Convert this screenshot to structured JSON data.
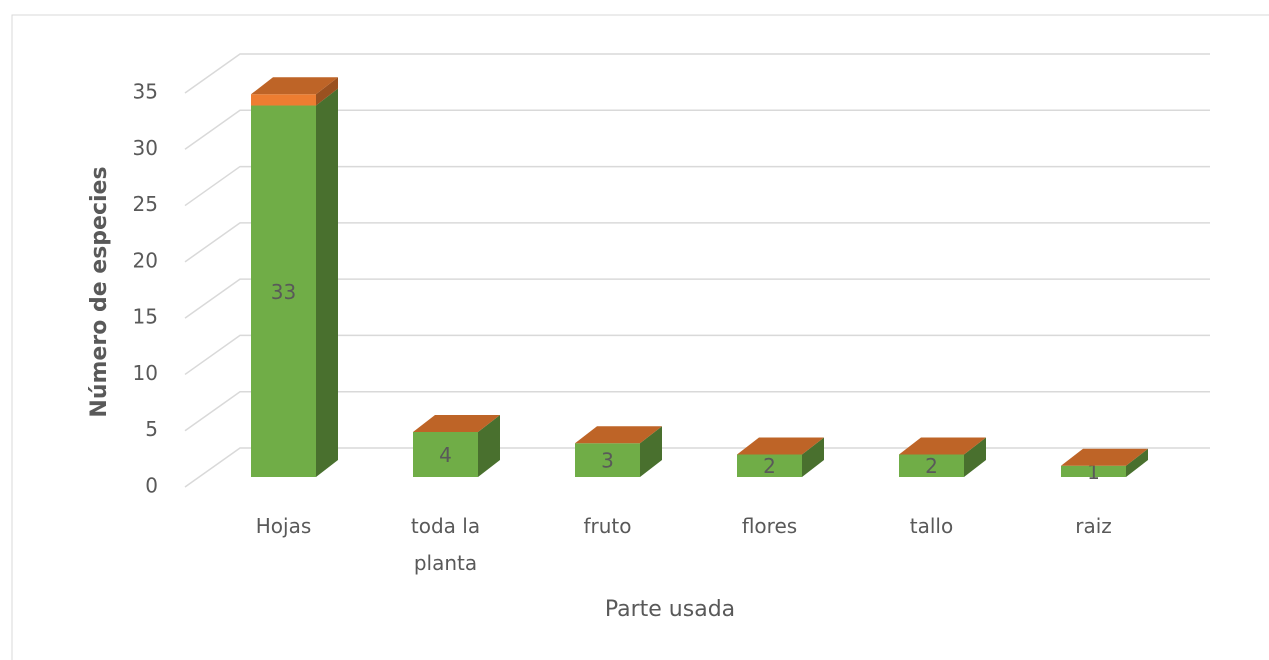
{
  "chart_data": {
    "type": "bar3d_stacked",
    "x_label": "Parte usada",
    "y_label": "Número de especies",
    "categories": [
      "Hojas",
      "toda la planta",
      "fruto",
      "flores",
      "tallo",
      "raiz"
    ],
    "series": [
      {
        "color": "#70ad47",
        "values": [
          33,
          4,
          3,
          2,
          2,
          1
        ]
      },
      {
        "color": "#ed7d31",
        "values": [
          1,
          0,
          0,
          0,
          0,
          0
        ]
      }
    ],
    "ylim": [
      0,
      35
    ],
    "yticks": [
      0,
      5,
      10,
      15,
      20,
      25,
      30,
      35
    ],
    "grid": true
  }
}
